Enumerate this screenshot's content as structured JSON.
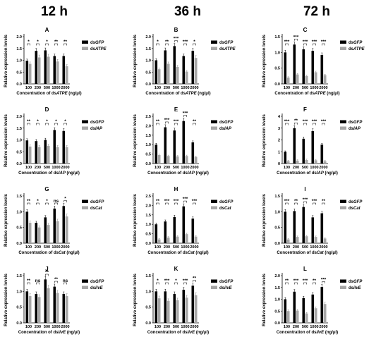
{
  "headers": [
    "12 h",
    "36 h",
    "72 h"
  ],
  "colors": {
    "dsGFP": "#000000",
    "treatment": "#a6a6a6",
    "frame": "#000000"
  },
  "chart_data": [
    {
      "type": "bar",
      "panel": "A",
      "categories": [
        "100",
        "200",
        "500",
        "1000",
        "2000"
      ],
      "xlabel_parts": [
        {
          "t": "Concentration of ds"
        },
        {
          "t": "ATPE",
          "i": true
        },
        {
          "t": " (ng/μl)"
        }
      ],
      "ylabel": "Relative expression levels",
      "ylim": [
        0,
        2.0
      ],
      "yticks": [
        "0.0",
        "0.5",
        "1.0",
        "1.5",
        "2.0"
      ],
      "series": [
        {
          "name": "dsGFP",
          "name_parts": [
            {
              "t": "ds"
            },
            {
              "t": "GFP",
              "i": true
            }
          ],
          "values": [
            0.98,
            1.4,
            1.42,
            1.18,
            1.18
          ]
        },
        {
          "name": "dsATPE",
          "name_parts": [
            {
              "t": "ds"
            },
            {
              "t": "ATPE",
              "i": true
            }
          ],
          "values": [
            0.85,
            1.12,
            1.15,
            0.95,
            0.75
          ]
        }
      ],
      "significance": [
        "*",
        "*",
        "*",
        "**",
        "**"
      ]
    },
    {
      "type": "bar",
      "panel": "B",
      "categories": [
        "100",
        "200",
        "500",
        "1000",
        "2000"
      ],
      "xlabel_parts": [
        {
          "t": "Concentration of ds"
        },
        {
          "t": "ATPE",
          "i": true
        },
        {
          "t": " (ng/μl)"
        }
      ],
      "ylabel": "Relative expression levels",
      "ylim": [
        0,
        2.0
      ],
      "yticks": [
        "0.0",
        "0.5",
        "1.0",
        "1.5",
        "2.0"
      ],
      "series": [
        {
          "name": "dsGFP",
          "name_parts": [
            {
              "t": "ds"
            },
            {
              "t": "GFP",
              "i": true
            }
          ],
          "values": [
            1.0,
            1.42,
            1.6,
            1.18,
            1.4
          ]
        },
        {
          "name": "dsATPE",
          "name_parts": [
            {
              "t": "ds"
            },
            {
              "t": "ATPE",
              "i": true
            }
          ],
          "values": [
            0.62,
            0.85,
            0.72,
            0.52,
            1.1
          ]
        }
      ],
      "significance": [
        "*",
        "**",
        "***",
        "***",
        "*"
      ]
    },
    {
      "type": "bar",
      "panel": "C",
      "categories": [
        "100",
        "200",
        "500",
        "1000",
        "2000"
      ],
      "xlabel_parts": [
        {
          "t": "Concentration of ds"
        },
        {
          "t": "ATPE",
          "i": true
        },
        {
          "t": " (ng/μl)"
        }
      ],
      "ylabel": "Relative expression levels",
      "ylim": [
        0,
        1.5
      ],
      "yticks": [
        "0.0",
        "0.5",
        "1.0",
        "1.5"
      ],
      "series": [
        {
          "name": "dsGFP",
          "name_parts": [
            {
              "t": "ds"
            },
            {
              "t": "GFP",
              "i": true
            }
          ],
          "values": [
            1.0,
            1.25,
            1.1,
            1.05,
            0.92
          ]
        },
        {
          "name": "dsATPE",
          "name_parts": [
            {
              "t": "ds"
            },
            {
              "t": "ATPE",
              "i": true
            }
          ],
          "values": [
            0.2,
            0.3,
            0.25,
            0.37,
            0.28
          ]
        }
      ],
      "significance": [
        "***",
        "***",
        "***",
        "***",
        "***"
      ]
    },
    {
      "type": "bar",
      "panel": "D",
      "categories": [
        "100",
        "200",
        "500",
        "1000",
        "2000"
      ],
      "xlabel_parts": [
        {
          "t": "Concentration of ds"
        },
        {
          "t": "IAP",
          "i": true
        },
        {
          "t": " (ng/μl)"
        }
      ],
      "ylabel": "Relative expression levels",
      "ylim": [
        0,
        2.0
      ],
      "yticks": [
        "0.0",
        "0.5",
        "1.0",
        "1.5",
        "2.0"
      ],
      "series": [
        {
          "name": "dsGFP",
          "name_parts": [
            {
              "t": "ds"
            },
            {
              "t": "GFP",
              "i": true
            }
          ],
          "values": [
            0.98,
            0.95,
            1.0,
            1.42,
            1.38
          ]
        },
        {
          "name": "dsIAP",
          "name_parts": [
            {
              "t": "ds"
            },
            {
              "t": "IAP",
              "i": true
            }
          ],
          "values": [
            0.72,
            0.7,
            0.75,
            0.7,
            0.7
          ]
        }
      ],
      "significance": [
        "**",
        "*",
        "*",
        "*",
        "*"
      ]
    },
    {
      "type": "bar",
      "panel": "E",
      "categories": [
        "100",
        "200",
        "500",
        "1000",
        "2000"
      ],
      "xlabel_parts": [
        {
          "t": "Concentration of ds"
        },
        {
          "t": "IAP",
          "i": true
        },
        {
          "t": " (ng/μl)"
        }
      ],
      "ylabel": "Relative expression levels",
      "ylim": [
        0,
        2.5
      ],
      "yticks": [
        "0.0",
        "0.5",
        "1.0",
        "1.5",
        "2.0",
        "2.5"
      ],
      "series": [
        {
          "name": "dsGFP",
          "name_parts": [
            {
              "t": "ds"
            },
            {
              "t": "GFP",
              "i": true
            }
          ],
          "values": [
            1.0,
            1.92,
            1.75,
            2.25,
            1.12
          ]
        },
        {
          "name": "dsIAP",
          "name_parts": [
            {
              "t": "ds"
            },
            {
              "t": "IAP",
              "i": true
            }
          ],
          "values": [
            0.45,
            0.4,
            0.38,
            0.4,
            0.35
          ]
        }
      ],
      "significance": [
        "**",
        "***",
        "***",
        "***",
        "**"
      ]
    },
    {
      "type": "bar",
      "panel": "F",
      "categories": [
        "100",
        "200",
        "500",
        "1000",
        "2000"
      ],
      "xlabel_parts": [
        {
          "t": "Concentration of ds"
        },
        {
          "t": "IAP",
          "i": true
        },
        {
          "t": " (ng/μl)"
        }
      ],
      "ylabel": "Relative expression levels",
      "ylim": [
        0,
        4
      ],
      "yticks": [
        "0",
        "1",
        "2",
        "3",
        "4"
      ],
      "series": [
        {
          "name": "dsGFP",
          "name_parts": [
            {
              "t": "ds"
            },
            {
              "t": "GFP",
              "i": true
            }
          ],
          "values": [
            1.0,
            3.0,
            2.1,
            2.75,
            1.6
          ]
        },
        {
          "name": "dsIAP",
          "name_parts": [
            {
              "t": "ds"
            },
            {
              "t": "IAP",
              "i": true
            }
          ],
          "values": [
            0.2,
            0.25,
            0.3,
            0.28,
            0.2
          ]
        }
      ],
      "significance": [
        "***",
        "**",
        "***",
        "***",
        "***"
      ]
    },
    {
      "type": "bar",
      "panel": "G",
      "categories": [
        "100",
        "200",
        "500",
        "1000",
        "2000"
      ],
      "xlabel_parts": [
        {
          "t": "Concentration of ds"
        },
        {
          "t": "Cat",
          "i": true
        },
        {
          "t": " (ng/μl)"
        }
      ],
      "ylabel": "Relative expression levels",
      "ylim": [
        0,
        1.5
      ],
      "yticks": [
        "0.0",
        "0.5",
        "1.0",
        "1.5"
      ],
      "series": [
        {
          "name": "dsGFP",
          "name_parts": [
            {
              "t": "ds"
            },
            {
              "t": "GFP",
              "i": true
            }
          ],
          "values": [
            1.0,
            0.65,
            0.82,
            1.1,
            1.18
          ]
        },
        {
          "name": "dsCat",
          "name_parts": [
            {
              "t": "ds"
            },
            {
              "t": "Cat",
              "i": true
            }
          ],
          "values": [
            0.65,
            0.5,
            0.58,
            0.7,
            0.85
          ]
        }
      ],
      "significance": [
        "**",
        "*",
        "*",
        "ns",
        "*"
      ]
    },
    {
      "type": "bar",
      "panel": "H",
      "categories": [
        "100",
        "200",
        "500",
        "1000",
        "2000"
      ],
      "xlabel_parts": [
        {
          "t": "Concentration of ds"
        },
        {
          "t": "Cat",
          "i": true
        },
        {
          "t": " (ng/μl)"
        }
      ],
      "ylabel": "Relative expression levels",
      "ylim": [
        0,
        2.5
      ],
      "yticks": [
        "0.0",
        "0.5",
        "1.0",
        "1.5",
        "2.0",
        "2.5"
      ],
      "series": [
        {
          "name": "dsGFP",
          "name_parts": [
            {
              "t": "ds"
            },
            {
              "t": "GFP",
              "i": true
            }
          ],
          "values": [
            1.0,
            1.15,
            1.38,
            1.95,
            1.3
          ]
        },
        {
          "name": "dsCat",
          "name_parts": [
            {
              "t": "ds"
            },
            {
              "t": "Cat",
              "i": true
            }
          ],
          "values": [
            0.2,
            0.3,
            0.35,
            0.48,
            0.35
          ]
        }
      ],
      "significance": [
        "**",
        "***",
        "***",
        "***",
        "***"
      ]
    },
    {
      "type": "bar",
      "panel": "I",
      "categories": [
        "100",
        "200",
        "500",
        "1000",
        "2000"
      ],
      "xlabel_parts": [
        {
          "t": "Concentration of ds"
        },
        {
          "t": "Cat",
          "i": true
        },
        {
          "t": " (ng/μl)"
        }
      ],
      "ylabel": "Relative expression levels",
      "ylim": [
        0,
        1.5
      ],
      "yticks": [
        "0.0",
        "0.5",
        "1.0",
        "1.5"
      ],
      "series": [
        {
          "name": "dsGFP",
          "name_parts": [
            {
              "t": "ds"
            },
            {
              "t": "GFP",
              "i": true
            }
          ],
          "values": [
            1.0,
            1.02,
            1.15,
            0.82,
            0.95
          ]
        },
        {
          "name": "dsCat",
          "name_parts": [
            {
              "t": "ds"
            },
            {
              "t": "Cat",
              "i": true
            }
          ],
          "values": [
            0.12,
            0.2,
            0.22,
            0.2,
            0.15
          ]
        }
      ],
      "significance": [
        "***",
        "**",
        "***",
        "***",
        "**"
      ]
    },
    {
      "type": "bar",
      "panel": "J",
      "categories": [
        "100",
        "200",
        "500",
        "1000",
        "2000"
      ],
      "xlabel_parts": [
        {
          "t": "Concentration of ds"
        },
        {
          "t": "ilvE",
          "i": true
        },
        {
          "t": " (ng/μl)"
        }
      ],
      "ylabel": "Relative expression levels",
      "ylim": [
        0,
        1.5
      ],
      "yticks": [
        "0.0",
        "0.5",
        "1.0",
        "1.5"
      ],
      "series": [
        {
          "name": "dsGFP",
          "name_parts": [
            {
              "t": "ds"
            },
            {
              "t": "GFP",
              "i": true
            }
          ],
          "values": [
            1.0,
            0.92,
            1.38,
            1.15,
            0.92
          ]
        },
        {
          "name": "dsilvE",
          "name_parts": [
            {
              "t": "ds"
            },
            {
              "t": "ilvE",
              "i": true
            }
          ],
          "values": [
            0.85,
            0.82,
            1.1,
            0.95,
            0.85
          ]
        }
      ],
      "significance": [
        "**",
        "ns",
        "**",
        "**",
        "ns"
      ]
    },
    {
      "type": "bar",
      "panel": "K",
      "categories": [
        "100",
        "200",
        "500",
        "1000",
        "2000"
      ],
      "xlabel_parts": [
        {
          "t": "Concentration of ds"
        },
        {
          "t": "ilvE",
          "i": true
        },
        {
          "t": " (ng/μl)"
        }
      ],
      "ylabel": "Relative expression levels",
      "ylim": [
        0,
        1.5
      ],
      "yticks": [
        "0.0",
        "0.5",
        "1.0",
        "1.5"
      ],
      "series": [
        {
          "name": "dsGFP",
          "name_parts": [
            {
              "t": "ds"
            },
            {
              "t": "GFP",
              "i": true
            }
          ],
          "values": [
            1.0,
            1.0,
            0.92,
            1.05,
            1.18
          ]
        },
        {
          "name": "dsilvE",
          "name_parts": [
            {
              "t": "ds"
            },
            {
              "t": "ilvE",
              "i": true
            }
          ],
          "values": [
            0.78,
            0.7,
            0.72,
            0.8,
            0.88
          ]
        }
      ],
      "significance": [
        "*",
        "***",
        "*",
        "***",
        "**"
      ]
    },
    {
      "type": "bar",
      "panel": "L",
      "categories": [
        "100",
        "200",
        "500",
        "1000",
        "2000"
      ],
      "xlabel_parts": [
        {
          "t": "Concentration of ds"
        },
        {
          "t": "ilvE",
          "i": true
        },
        {
          "t": " (ng/μl)"
        }
      ],
      "ylabel": "Relative expression levels",
      "ylim": [
        0,
        2.0
      ],
      "yticks": [
        "0.0",
        "0.5",
        "1.0",
        "1.5",
        "2.0"
      ],
      "series": [
        {
          "name": "dsGFP",
          "name_parts": [
            {
              "t": "ds"
            },
            {
              "t": "GFP",
              "i": true
            }
          ],
          "values": [
            1.0,
            1.32,
            1.05,
            1.2,
            1.52
          ]
        },
        {
          "name": "dsilvE",
          "name_parts": [
            {
              "t": "ds"
            },
            {
              "t": "ilvE",
              "i": true
            }
          ],
          "values": [
            0.5,
            0.52,
            0.4,
            0.62,
            0.8
          ]
        }
      ],
      "significance": [
        "**",
        "***",
        "***",
        "**",
        "***"
      ]
    }
  ]
}
